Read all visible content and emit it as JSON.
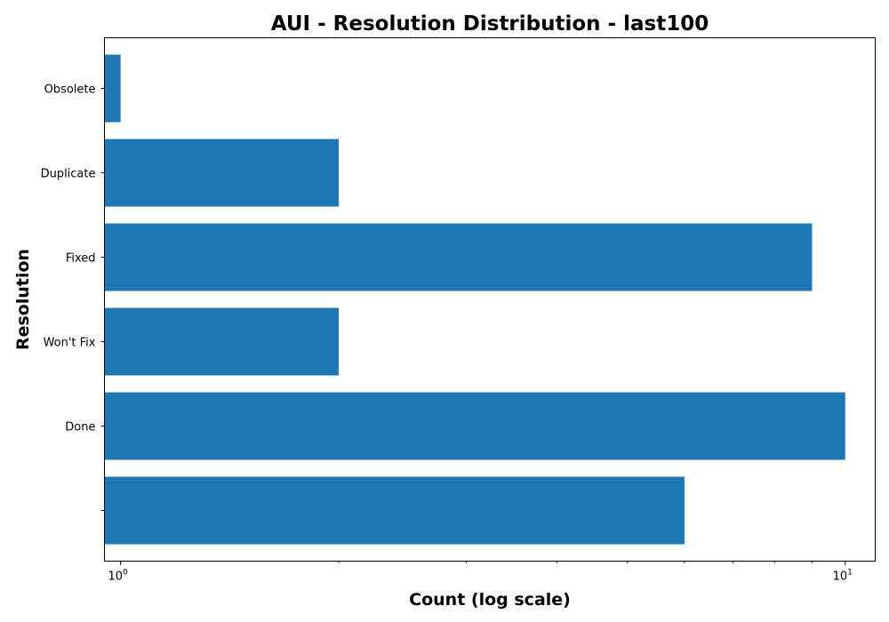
{
  "chart_data": {
    "type": "bar",
    "orientation": "horizontal",
    "title": "AUI - Resolution Distribution - last100",
    "xlabel": "Count (log scale)",
    "ylabel": "Resolution",
    "x_scale": "log",
    "xlim": [
      0.95,
      11.0
    ],
    "grid": false,
    "legend": "none",
    "bar_color": "#1f77b4",
    "categories": [
      "",
      "Done",
      "Won't Fix",
      "Fixed",
      "Duplicate",
      "Obsolete"
    ],
    "values": [
      6,
      10,
      2,
      9,
      2,
      1
    ],
    "x_major_ticks": [
      {
        "value": 1,
        "base": "10",
        "exp": "0"
      },
      {
        "value": 10,
        "base": "10",
        "exp": "1"
      }
    ],
    "x_minor_ticks": [
      2,
      3,
      4,
      5,
      6,
      7,
      8,
      9
    ]
  }
}
